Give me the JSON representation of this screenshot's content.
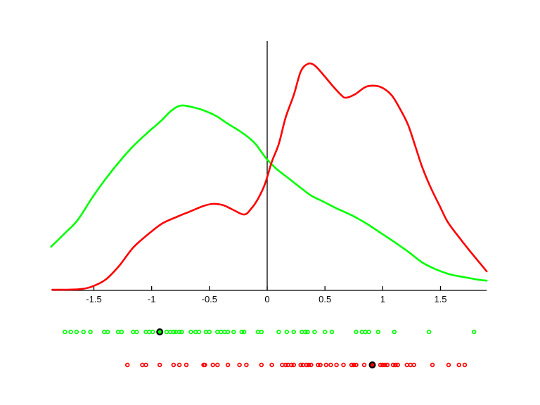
{
  "figure": {
    "background_color": "#FFFFFF"
  },
  "chart_data": {
    "type": "line",
    "subtype": "kernel-density-estimates-with-rug-plots",
    "title": "",
    "xlabel": "",
    "ylabel": "",
    "grid": "off",
    "legend": "none",
    "axis_color": "#000000",
    "x_range": [
      -1.86,
      1.9
    ],
    "density_range": [
      0,
      1.1
    ],
    "vertical_reference_line_x": 0,
    "x_ticks": [
      {
        "value": -1.5,
        "label": "-1.5"
      },
      {
        "value": -1.0,
        "label": "-1"
      },
      {
        "value": -0.5,
        "label": "-0.5"
      },
      {
        "value": 0.0,
        "label": "0"
      },
      {
        "value": 0.5,
        "label": "0.5"
      },
      {
        "value": 1.0,
        "label": "1"
      },
      {
        "value": 1.5,
        "label": "1.5"
      }
    ],
    "series": [
      {
        "name": "green-class-density",
        "color": "#00FF00",
        "points": [
          [
            -1.87,
            0.193
          ],
          [
            -1.76,
            0.248
          ],
          [
            -1.64,
            0.311
          ],
          [
            -1.51,
            0.413
          ],
          [
            -1.4,
            0.491
          ],
          [
            -1.28,
            0.568
          ],
          [
            -1.16,
            0.637
          ],
          [
            -1.03,
            0.699
          ],
          [
            -0.92,
            0.748
          ],
          [
            -0.84,
            0.789
          ],
          [
            -0.78,
            0.811
          ],
          [
            -0.73,
            0.817
          ],
          [
            -0.66,
            0.811
          ],
          [
            -0.55,
            0.795
          ],
          [
            -0.44,
            0.77
          ],
          [
            -0.35,
            0.739
          ],
          [
            -0.26,
            0.711
          ],
          [
            -0.18,
            0.683
          ],
          [
            -0.1,
            0.646
          ],
          [
            -0.01,
            0.584
          ],
          [
            0.08,
            0.537
          ],
          [
            0.18,
            0.497
          ],
          [
            0.29,
            0.453
          ],
          [
            0.38,
            0.419
          ],
          [
            0.49,
            0.391
          ],
          [
            0.61,
            0.36
          ],
          [
            0.73,
            0.332
          ],
          [
            0.85,
            0.298
          ],
          [
            0.97,
            0.258
          ],
          [
            1.1,
            0.214
          ],
          [
            1.22,
            0.171
          ],
          [
            1.34,
            0.124
          ],
          [
            1.46,
            0.093
          ],
          [
            1.58,
            0.071
          ],
          [
            1.7,
            0.059
          ],
          [
            1.83,
            0.047
          ],
          [
            1.9,
            0.043
          ]
        ]
      },
      {
        "name": "red-class-density",
        "color": "#FF0000",
        "points": [
          [
            -1.86,
            0.003
          ],
          [
            -1.73,
            0.003
          ],
          [
            -1.61,
            0.006
          ],
          [
            -1.52,
            0.016
          ],
          [
            -1.4,
            0.047
          ],
          [
            -1.28,
            0.109
          ],
          [
            -1.16,
            0.189
          ],
          [
            -1.03,
            0.248
          ],
          [
            -0.91,
            0.295
          ],
          [
            -0.79,
            0.323
          ],
          [
            -0.67,
            0.348
          ],
          [
            -0.55,
            0.373
          ],
          [
            -0.47,
            0.382
          ],
          [
            -0.38,
            0.376
          ],
          [
            -0.3,
            0.357
          ],
          [
            -0.2,
            0.335
          ],
          [
            -0.14,
            0.36
          ],
          [
            -0.08,
            0.404
          ],
          [
            -0.02,
            0.469
          ],
          [
            0.04,
            0.568
          ],
          [
            0.1,
            0.646
          ],
          [
            0.16,
            0.764
          ],
          [
            0.23,
            0.863
          ],
          [
            0.29,
            0.966
          ],
          [
            0.35,
            1.0
          ],
          [
            0.41,
            0.994
          ],
          [
            0.49,
            0.95
          ],
          [
            0.57,
            0.901
          ],
          [
            0.64,
            0.863
          ],
          [
            0.68,
            0.851
          ],
          [
            0.76,
            0.866
          ],
          [
            0.85,
            0.898
          ],
          [
            0.93,
            0.904
          ],
          [
            1.0,
            0.894
          ],
          [
            1.08,
            0.86
          ],
          [
            1.16,
            0.792
          ],
          [
            1.22,
            0.73
          ],
          [
            1.28,
            0.64
          ],
          [
            1.34,
            0.547
          ],
          [
            1.41,
            0.46
          ],
          [
            1.49,
            0.376
          ],
          [
            1.56,
            0.304
          ],
          [
            1.64,
            0.248
          ],
          [
            1.73,
            0.189
          ],
          [
            1.83,
            0.127
          ],
          [
            1.9,
            0.084
          ]
        ]
      }
    ],
    "rugs": [
      {
        "name": "green-sample-points",
        "color": "#00FF00",
        "row": "upper",
        "highlighted_value": -0.93,
        "values": [
          -1.75,
          -1.7,
          -1.65,
          -1.59,
          -1.53,
          -1.41,
          -1.38,
          -1.29,
          -1.26,
          -1.16,
          -1.13,
          -1.05,
          -1.02,
          -0.99,
          -0.93,
          -0.87,
          -0.84,
          -0.81,
          -0.79,
          -0.76,
          -0.74,
          -0.66,
          -0.62,
          -0.59,
          -0.53,
          -0.5,
          -0.43,
          -0.4,
          -0.37,
          -0.34,
          -0.29,
          -0.22,
          -0.2,
          -0.08,
          -0.05,
          0.1,
          0.17,
          0.23,
          0.3,
          0.33,
          0.35,
          0.41,
          0.5,
          0.56,
          0.77,
          0.82,
          0.85,
          0.88,
          0.96,
          1.1,
          1.4,
          1.79
        ]
      },
      {
        "name": "red-sample-points",
        "color": "#FF0000",
        "row": "lower",
        "highlighted_value": 0.91,
        "values": [
          -1.21,
          -1.08,
          -1.05,
          -0.93,
          -0.81,
          -0.76,
          -0.7,
          -0.55,
          -0.54,
          -0.47,
          -0.43,
          -0.34,
          -0.24,
          -0.18,
          -0.05,
          0.04,
          0.13,
          0.16,
          0.18,
          0.21,
          0.23,
          0.29,
          0.31,
          0.34,
          0.36,
          0.38,
          0.44,
          0.46,
          0.51,
          0.55,
          0.6,
          0.66,
          0.73,
          0.75,
          0.77,
          0.84,
          0.91,
          0.98,
          1.0,
          1.02,
          1.04,
          1.09,
          1.11,
          1.13,
          1.21,
          1.24,
          1.27,
          1.43,
          1.57,
          1.66,
          1.71
        ]
      }
    ]
  }
}
